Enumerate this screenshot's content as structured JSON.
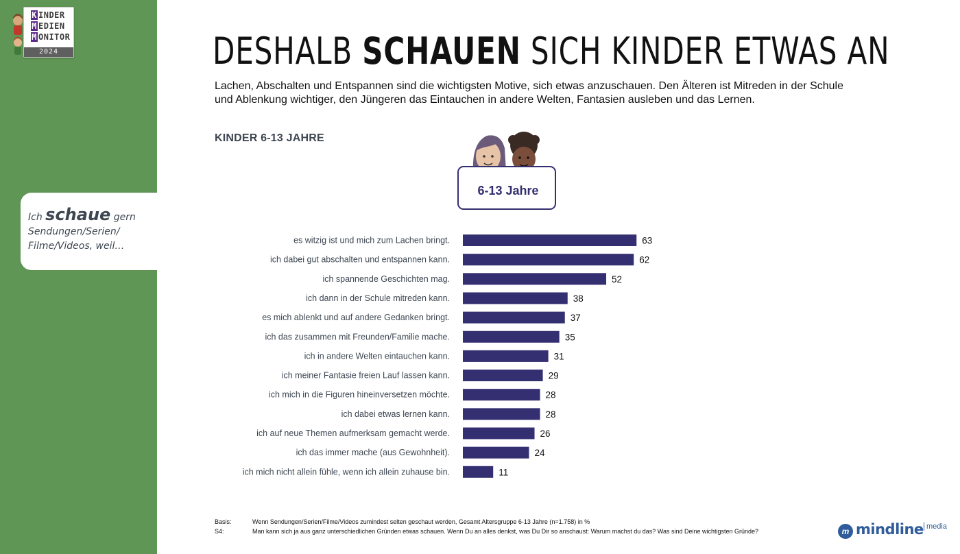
{
  "logo": {
    "lines": [
      "KINDER",
      "MEDIEN",
      "MONITOR"
    ],
    "year": "2024"
  },
  "bubble": {
    "prefix": "Ich",
    "emphasis": "schaue",
    "suffix": "gern",
    "line2": "Sendungen/Serien/",
    "line3": "Filme/Videos, weil…"
  },
  "headline": {
    "part1": "Deshalb",
    "part2": "schauen",
    "part3": "sich Kinder etwas an"
  },
  "intro": "Lachen, Abschalten und Entspannen sind die wichtigsten Motive, sich etwas anzuschauen. Den Älteren ist Mitreden in der Schule und Ablenkung wichtiger, den Jüngeren das Eintauchen in andere Welten, Fantasien ausleben und das Lernen.",
  "section_label": "KINDER 6-13 JAHRE",
  "badge": "6-13 Jahre",
  "colors": {
    "sidebar": "#609655",
    "bar": "#342f70",
    "label_text": "#3d4651",
    "brand": "#2f5c9a"
  },
  "chart_data": {
    "type": "bar",
    "orientation": "horizontal",
    "categories": [
      "es witzig ist und mich zum Lachen bringt.",
      "ich dabei gut abschalten und entspannen kann.",
      "ich spannende Geschichten mag.",
      "ich dann in der Schule mitreden kann.",
      "es mich ablenkt und auf andere Gedanken bringt.",
      "ich das zusammen mit Freunden/Familie mache.",
      "ich in andere Welten eintauchen kann.",
      "ich meiner Fantasie freien Lauf lassen kann.",
      "ich mich in die Figuren hineinversetzen möchte.",
      "ich dabei etwas lernen kann.",
      "ich auf neue Themen aufmerksam gemacht werde.",
      "ich das immer mache (aus Gewohnheit).",
      "ich mich nicht allein fühle, wenn ich allein zuhause bin."
    ],
    "values": [
      63,
      62,
      52,
      38,
      37,
      35,
      31,
      29,
      28,
      28,
      26,
      24,
      11
    ],
    "title": "",
    "xlabel": "",
    "ylabel": "",
    "grid": false
  },
  "footer": {
    "basis_key": "Basis:",
    "basis_text": "Wenn Sendungen/Serien/Filme/Videos zumindest selten geschaut werden, Gesamt Altersgruppe 6-13 Jahre (n=1.758)  in %",
    "q_key": "S4:",
    "q_text": "Man kann sich ja aus ganz unterschiedlichen Gründen etwas schauen. Wenn Du an alles denkst, was Du Dir so anschaust: Warum machst du das? Was sind Deine wichtigsten Gründe?"
  },
  "brand": {
    "mark": "m",
    "name": "mindline",
    "sub": "media"
  }
}
